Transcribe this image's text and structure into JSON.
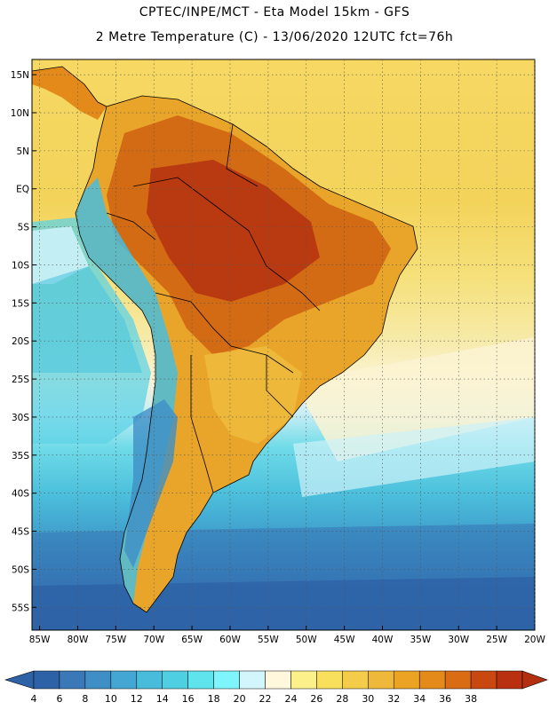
{
  "header": {
    "line1": "CPTEC/INPE/MCT -  Eta Model 15km - GFS",
    "line2": "2 Metre Temperature (C) - 13/06/2020 12UTC fct=76h"
  },
  "map": {
    "lon_range": [
      -86,
      -20
    ],
    "lat_range": [
      -58,
      17
    ],
    "lat_ticks": [
      {
        "value": 15,
        "label": "15N"
      },
      {
        "value": 10,
        "label": "10N"
      },
      {
        "value": 5,
        "label": "5N"
      },
      {
        "value": 0,
        "label": "EQ"
      },
      {
        "value": -5,
        "label": "5S"
      },
      {
        "value": -10,
        "label": "10S"
      },
      {
        "value": -15,
        "label": "15S"
      },
      {
        "value": -20,
        "label": "20S"
      },
      {
        "value": -25,
        "label": "25S"
      },
      {
        "value": -30,
        "label": "30S"
      },
      {
        "value": -35,
        "label": "35S"
      },
      {
        "value": -40,
        "label": "40S"
      },
      {
        "value": -45,
        "label": "45S"
      },
      {
        "value": -50,
        "label": "50S"
      },
      {
        "value": -55,
        "label": "55S"
      }
    ],
    "lon_ticks": [
      {
        "value": -85,
        "label": "85W"
      },
      {
        "value": -80,
        "label": "80W"
      },
      {
        "value": -75,
        "label": "75W"
      },
      {
        "value": -70,
        "label": "70W"
      },
      {
        "value": -65,
        "label": "65W"
      },
      {
        "value": -60,
        "label": "60W"
      },
      {
        "value": -55,
        "label": "55W"
      },
      {
        "value": -50,
        "label": "50W"
      },
      {
        "value": -45,
        "label": "45W"
      },
      {
        "value": -40,
        "label": "40W"
      },
      {
        "value": -35,
        "label": "35W"
      },
      {
        "value": -30,
        "label": "30W"
      },
      {
        "value": -25,
        "label": "25W"
      },
      {
        "value": -20,
        "label": "20W"
      }
    ],
    "grid": true,
    "grid_style": "dotted"
  },
  "colorbar": {
    "labels": [
      "4",
      "6",
      "8",
      "10",
      "12",
      "14",
      "16",
      "18",
      "20",
      "22",
      "24",
      "26",
      "28",
      "30",
      "32",
      "34",
      "36",
      "38"
    ],
    "colors": [
      "#2e62a6",
      "#3a78b8",
      "#3f8fc6",
      "#44a6d2",
      "#49bcdc",
      "#4fcfe2",
      "#5fe4ee",
      "#7ef5fa",
      "#d2f6fb",
      "#fff8dd",
      "#fbf08a",
      "#f8df5c",
      "#f3cc49",
      "#eeb93a",
      "#eaa322",
      "#e48a1b",
      "#da6c14",
      "#c8480f",
      "#b83010"
    ],
    "min_color": "#2e62a6",
    "max_color": "#b2300f"
  }
}
